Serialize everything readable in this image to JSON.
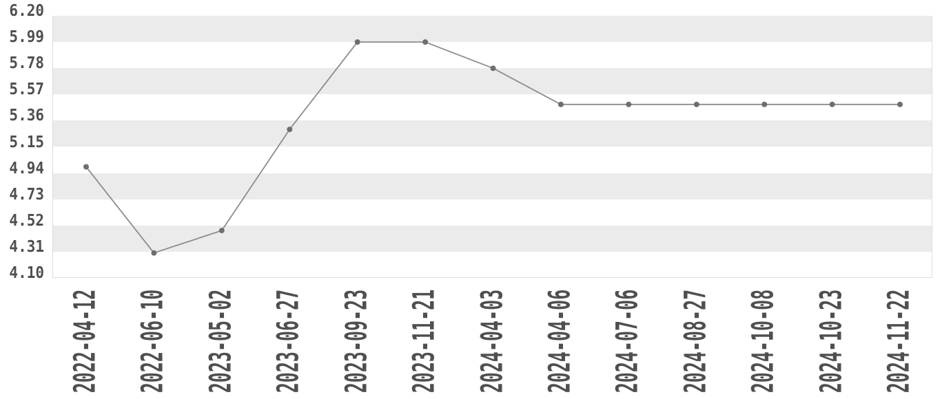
{
  "chart_data": {
    "type": "line",
    "title": "",
    "xlabel": "",
    "ylabel": "",
    "x": [
      "2022-04-12",
      "2022-06-10",
      "2023-05-02",
      "2023-06-27",
      "2023-09-23",
      "2023-11-21",
      "2024-04-03",
      "2024-04-06",
      "2024-07-06",
      "2024-08-27",
      "2024-10-08",
      "2024-10-23",
      "2024-11-22"
    ],
    "values": [
      4.99,
      4.3,
      4.48,
      5.29,
      5.99,
      5.99,
      5.78,
      5.49,
      5.49,
      5.49,
      5.49,
      5.49,
      5.49
    ],
    "y_ticks": [
      "6.20",
      "5.99",
      "5.78",
      "5.57",
      "5.36",
      "5.15",
      "4.94",
      "4.73",
      "4.52",
      "4.31",
      "4.10"
    ],
    "ylim": [
      4.1,
      6.2
    ],
    "grid": "horizontal-alternating-bands",
    "legend": "none"
  },
  "colors": {
    "background": "#ffffff",
    "band": "#ebebeb",
    "plot_border": "#dcdcdc",
    "line": "#8c8c8c",
    "marker": "#6e6e6e",
    "tick_text": "#4f4f4f"
  }
}
